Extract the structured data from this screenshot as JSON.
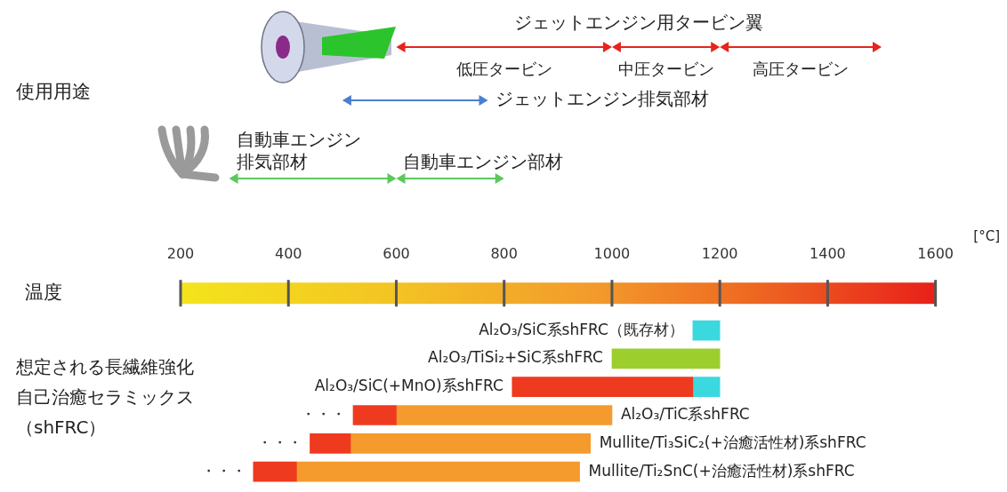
{
  "chart_data": {
    "type": "bar",
    "orientation": "horizontal",
    "applications_label": "使用用途",
    "xlabel": "温度",
    "xunit": "[°C]",
    "xlim": [
      200,
      1600
    ],
    "xticks": [
      200,
      400,
      600,
      800,
      1000,
      1200,
      1400,
      1600
    ],
    "grid": false,
    "tick_labels": "x",
    "applications": [
      {
        "label": "ジェットエンジン用タービン翼",
        "color": "#e8221c",
        "parts": [
          {
            "label": "低圧タービン",
            "from": 600,
            "to": 1000
          },
          {
            "label": "中圧タービン",
            "from": 1000,
            "to": 1200
          },
          {
            "label": "高圧タービン",
            "from": 1200,
            "to": 1500
          }
        ]
      },
      {
        "label": "ジェットエンジン排気部材",
        "color": "#4a7fd0",
        "from": 500,
        "to": 770
      },
      {
        "label": "自動車エンジン排気部材",
        "color": "#5cc85c",
        "from": 290,
        "to": 600
      },
      {
        "label": "自動車エンジン部材",
        "color": "#5cc85c",
        "from": 600,
        "to": 800
      }
    ],
    "materials_label": "想定される長繊維強化自己治癒セラミックス（shFRC）",
    "bars": [
      {
        "label": "Al₂O₃/SiC系shFRC（既存材）",
        "segments": [
          {
            "from": 1150,
            "to": 1200,
            "color": "#3cd8e0"
          }
        ]
      },
      {
        "label": "Al₂O₃/TiSi₂+SiC系shFRC",
        "segments": [
          {
            "from": 1000,
            "to": 1200,
            "color": "#9ccf2e"
          }
        ]
      },
      {
        "label": "Al₂O₃/SiC(+MnO)系shFRC",
        "segments": [
          {
            "from": 815,
            "to": 1150,
            "color": "#ee3a1f"
          },
          {
            "from": 1150,
            "to": 1200,
            "color": "#3cd8e0"
          }
        ]
      },
      {
        "label": "Al₂O₃/TiC系shFRC",
        "prefix": "・・・",
        "segments": [
          {
            "from": 520,
            "to": 600,
            "color": "#ee3a1f"
          },
          {
            "from": 600,
            "to": 1000,
            "color": "#f59a2c"
          }
        ]
      },
      {
        "label": "Mullite/Ti₃SiC₂(+治癒活性材)系shFRC",
        "prefix": "・・・",
        "segments": [
          {
            "from": 440,
            "to": 515,
            "color": "#ee3a1f"
          },
          {
            "from": 515,
            "to": 960,
            "color": "#f59a2c"
          }
        ]
      },
      {
        "label": "Mullite/Ti₂SnC(+治癒活性材)系shFRC",
        "prefix": "・・・",
        "segments": [
          {
            "from": 335,
            "to": 415,
            "color": "#ee3a1f"
          },
          {
            "from": 415,
            "to": 940,
            "color": "#f59a2c"
          }
        ]
      }
    ]
  }
}
